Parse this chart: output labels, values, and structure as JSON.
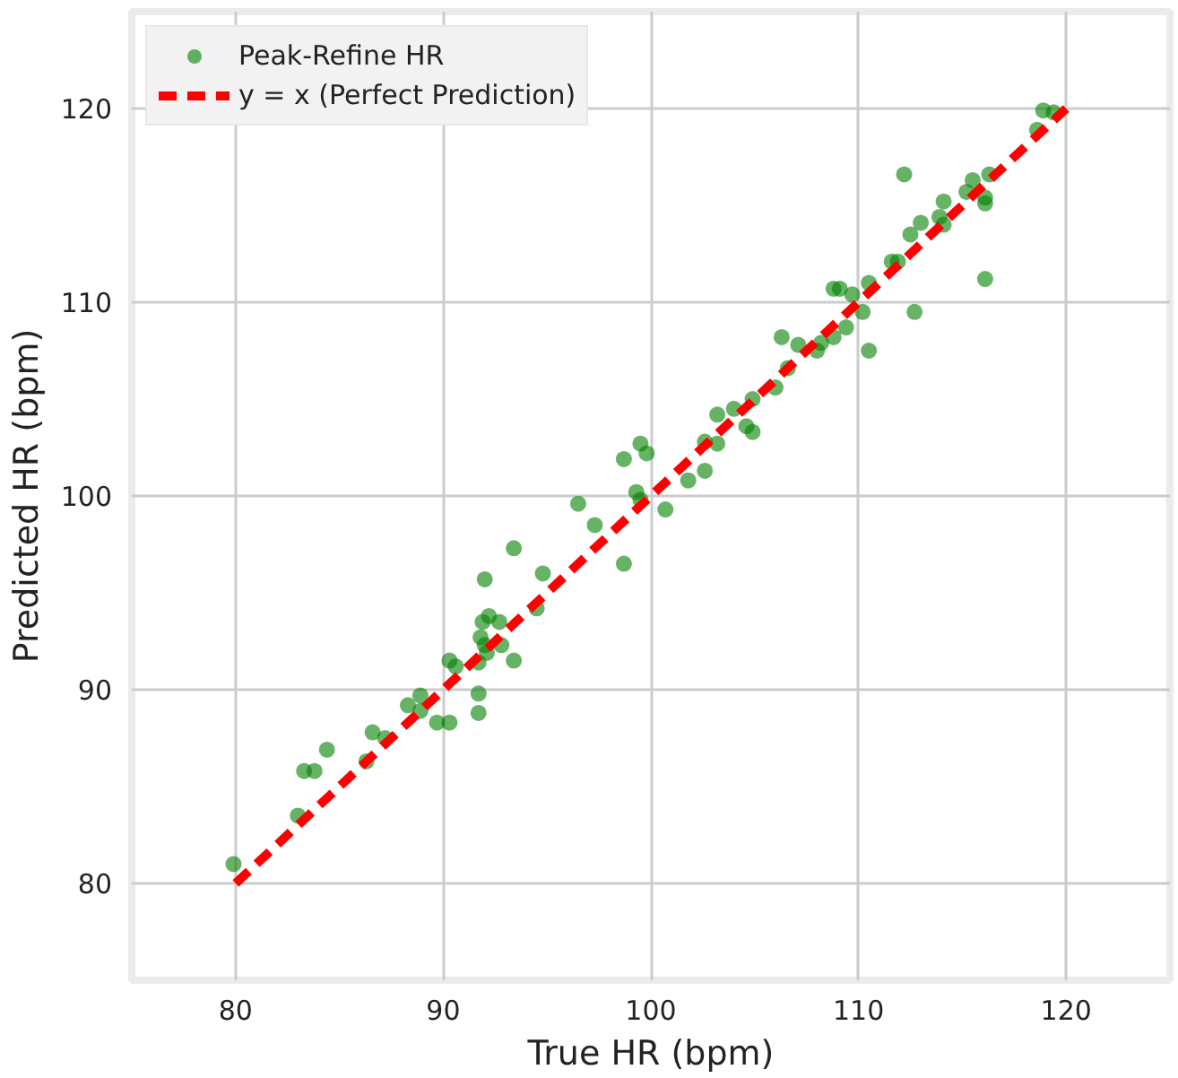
{
  "chart_data": {
    "type": "scatter",
    "xlabel": "True HR (bpm)",
    "ylabel": "Predicted HR (bpm)",
    "xlim": [
      75,
      125
    ],
    "ylim": [
      75,
      125
    ],
    "xticks": [
      80,
      90,
      100,
      110,
      120
    ],
    "yticks": [
      80,
      90,
      100,
      110,
      120
    ],
    "grid": true,
    "legend": "top left",
    "series": [
      {
        "name": "Peak-Refine HR",
        "marker": "circle",
        "color": "#008000",
        "x": [
          79.9,
          83.0,
          83.3,
          83.8,
          84.4,
          86.6,
          87.2,
          86.3,
          88.3,
          88.9,
          88.9,
          89.7,
          90.3,
          90.3,
          90.6,
          91.7,
          91.7,
          93.4,
          93.4,
          92.0,
          94.8,
          91.9,
          92.2,
          92.7,
          91.7,
          92.0,
          91.8,
          92.1,
          92.8,
          94.5,
          96.5,
          97.3,
          98.7,
          99.5,
          99.8,
          99.3,
          99.5,
          98.7,
          100.7,
          101.8,
          102.6,
          103.2,
          104.0,
          102.6,
          103.2,
          104.6,
          104.9,
          104.9,
          106.0,
          106.6,
          106.3,
          107.1,
          108.0,
          108.2,
          108.8,
          109.4,
          108.8,
          109.1,
          109.7,
          110.2,
          110.5,
          110.5,
          111.6,
          111.9,
          112.5,
          113.0,
          113.9,
          114.1,
          114.1,
          112.2,
          112.7,
          115.2,
          115.5,
          116.3,
          116.1,
          116.1,
          116.1,
          118.6,
          118.9,
          119.4
        ],
        "values": [
          81.0,
          83.5,
          85.8,
          85.8,
          86.9,
          87.8,
          87.5,
          86.3,
          89.2,
          89.7,
          88.9,
          88.3,
          88.3,
          91.5,
          91.2,
          89.8,
          88.8,
          91.5,
          97.3,
          95.7,
          96.0,
          93.5,
          93.8,
          93.5,
          91.4,
          92.3,
          92.7,
          91.9,
          92.3,
          94.2,
          99.6,
          98.5,
          101.9,
          102.7,
          102.2,
          100.2,
          99.8,
          96.5,
          99.3,
          100.8,
          101.3,
          104.2,
          104.5,
          102.8,
          102.7,
          103.6,
          103.3,
          105.0,
          105.6,
          106.6,
          108.2,
          107.8,
          107.5,
          107.9,
          108.2,
          108.7,
          110.7,
          110.7,
          110.4,
          109.5,
          111.0,
          107.5,
          112.1,
          112.1,
          113.5,
          114.1,
          114.4,
          114.0,
          115.2,
          116.6,
          109.5,
          115.7,
          116.3,
          116.6,
          115.4,
          115.1,
          111.2,
          118.9,
          119.9,
          119.8
        ]
      },
      {
        "name": "y = x (Perfect Prediction)",
        "type": "line",
        "color": "#ff0000",
        "line_style": "dashed",
        "x": [
          80,
          120
        ],
        "values": [
          80,
          120
        ]
      }
    ]
  }
}
